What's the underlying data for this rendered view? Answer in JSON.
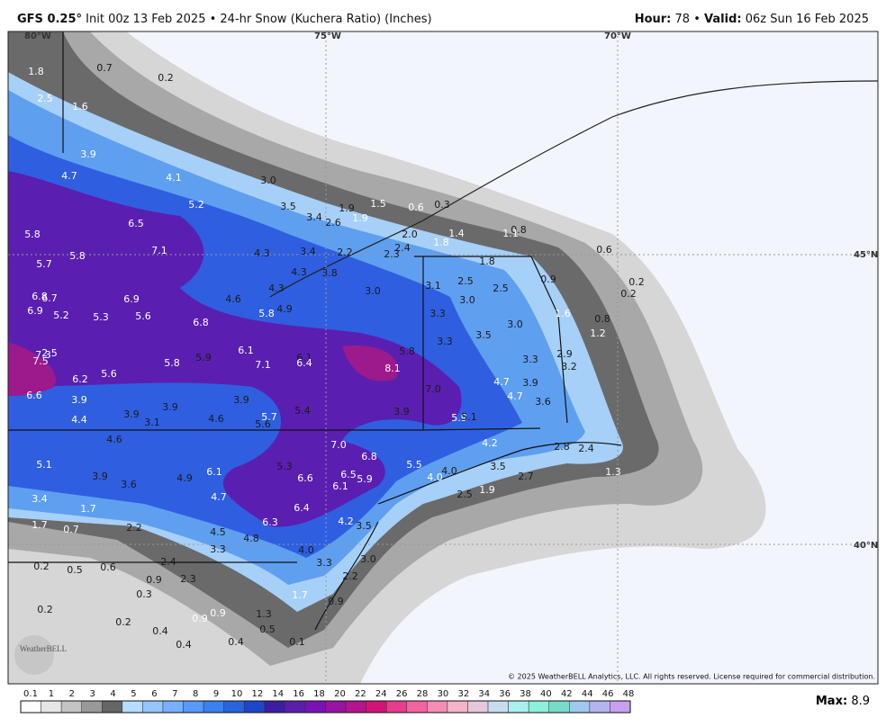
{
  "header": {
    "model": "GFS 0.25°",
    "description": "Init 00z 13 Feb 2025 • 24-hr Snow (Kuchera Ratio) (Inches)",
    "hour_label": "Hour:",
    "hour": "78",
    "separator": "•",
    "valid_label": "Valid:",
    "valid": "06z Sun 16 Feb 2025"
  },
  "map": {
    "grid_labels": [
      "80°W",
      "75°W",
      "70°W",
      "45°N",
      "40°N"
    ],
    "spot_values": [
      "1.8",
      "0.7",
      "0.2",
      "2.5",
      "1.6",
      "3.9",
      "4.7",
      "4.1",
      "3.0",
      "5.2",
      "3.5",
      "6.5",
      "3.4",
      "2.6",
      "1.9",
      "1.9",
      "1.5",
      "0.6",
      "0.3",
      "5.8",
      "2.0",
      "1.4",
      "0.8",
      "7.1",
      "4.3",
      "3.4",
      "2.2",
      "2.3",
      "2.4",
      "1.8",
      "1.1",
      "0.6",
      "5.7",
      "5.8",
      "1.8",
      "4.3",
      "3.8",
      "3.0",
      "3.1",
      "2.5",
      "2.5",
      "0.9",
      "0.2",
      "6.8",
      "6.7",
      "6.9",
      "4.6",
      "4.3",
      "3.0",
      "0.2",
      "6.9",
      "5.2",
      "5.3",
      "5.6",
      "6.8",
      "5.8",
      "4.9",
      "3.3",
      "1.6",
      "0.8",
      "3.0",
      "3.3",
      "3.5",
      "1.2",
      "6.1",
      "7.3",
      "7.5",
      "2.5",
      "5.8",
      "5.9",
      "7.1",
      "6.1",
      "6.4",
      "5.8",
      "2.9",
      "3.3",
      "3.2",
      "8.1",
      "6.2",
      "5.6",
      "7.0",
      "4.7",
      "3.9",
      "6.6",
      "3.9",
      "3.9",
      "4.7",
      "3.6",
      "4.4",
      "3.9",
      "3.1",
      "3.9",
      "4.6",
      "5.7",
      "5.4",
      "3.9",
      "5.9",
      "5.1",
      "5.6",
      "4.6",
      "7.0",
      "4.2",
      "2.8",
      "2.4",
      "6.8",
      "5.1",
      "5.3",
      "5.5",
      "3.5",
      "2.7",
      "1.3",
      "3.9",
      "3.6",
      "4.9",
      "6.1",
      "6.6",
      "6.5",
      "5.9",
      "4.0",
      "4.0",
      "6.1",
      "1.9",
      "2.5",
      "3.4",
      "4.7",
      "6.4",
      "4.2",
      "3.5",
      "6.3",
      "1.7",
      "1.7",
      "0.7",
      "2.2",
      "4.5",
      "4.8",
      "3.3",
      "4.0",
      "3.0",
      "3.3",
      "0.2",
      "0.5",
      "0.6",
      "2.4",
      "0.9",
      "2.3",
      "2.2",
      "0.3",
      "1.7",
      "0.9",
      "0.2",
      "0.2",
      "0.4",
      "0.9",
      "0.9",
      "1.3",
      "0.5",
      "0.4",
      "0.4",
      "0.1"
    ],
    "copyright": "© 2025 WeatherBELL Analytics, LLC. All rights reserved. License required for commercial distribution.",
    "logo": "WeatherBELL"
  },
  "legend": {
    "labels": [
      "0.1",
      "1",
      "2",
      "3",
      "4",
      "5",
      "6",
      "7",
      "8",
      "9",
      "10",
      "12",
      "14",
      "16",
      "18",
      "20",
      "22",
      "24",
      "26",
      "28",
      "30",
      "32",
      "34",
      "36",
      "38",
      "40",
      "42",
      "44",
      "46",
      "48"
    ]
  },
  "max": {
    "label": "Max",
    "value": "8.9"
  }
}
